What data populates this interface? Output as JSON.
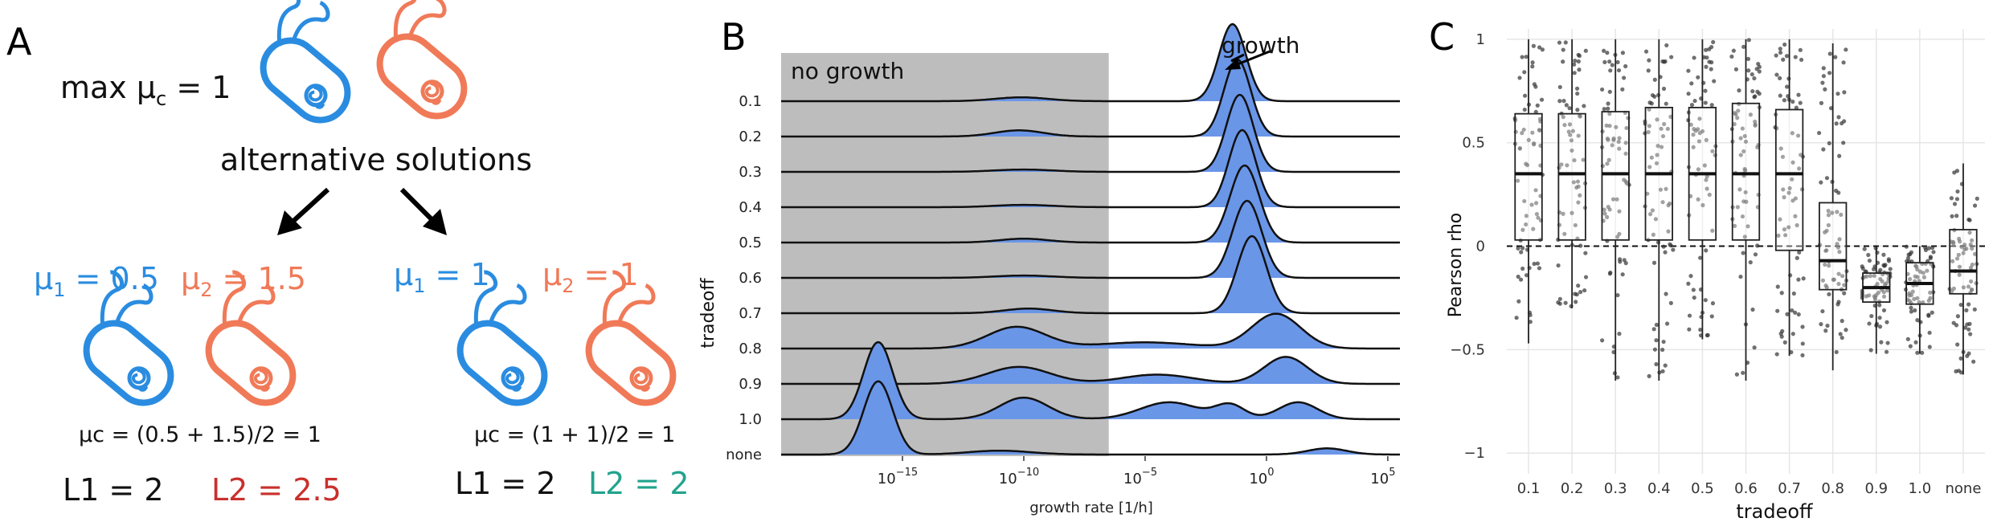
{
  "colors": {
    "blue": "#2a8ce0",
    "orange": "#f07a58",
    "l2_red": "#c9302c",
    "l2_teal": "#22a38c",
    "ridge_fill": "#6a96e8",
    "no_growth_bg": "#bdbdbd"
  },
  "panel_a": {
    "letter": "A",
    "max_mu_prefix": "max μ",
    "max_mu_sub": "c",
    "max_mu_suffix": " = 1",
    "alt_solutions": "alternative solutions",
    "left": {
      "mu1_prefix": "μ",
      "mu1_sub": "1",
      "mu1_value": " = 0.5",
      "mu2_prefix": "μ",
      "mu2_sub": "2",
      "mu2_value": " = 1.5",
      "formula": "μc = (0.5 + 1.5)/2 = 1",
      "l1": "L1 = 2",
      "l2": "L2 = 2.5"
    },
    "right": {
      "mu1_prefix": "μ",
      "mu1_sub": "1",
      "mu1_value": " = 1",
      "mu2_prefix": "μ",
      "mu2_sub": "2",
      "mu2_value": " = 1",
      "formula": "μc = (1 + 1)/2 = 1",
      "l1": "L1 = 2",
      "l2": "L2 = 2"
    },
    "icons": [
      "bacterium-blue-icon",
      "bacterium-orange-icon"
    ]
  },
  "panel_b": {
    "letter": "B",
    "no_growth_label": "no growth",
    "growth_label": "growth",
    "chart_data": {
      "type": "area",
      "x_scale": "log10",
      "xlim": [
        -20,
        5.5
      ],
      "xticks": [
        -15,
        -10,
        -5,
        0,
        5
      ],
      "xtick_labels": [
        "10",
        "10",
        "10",
        "10",
        "10"
      ],
      "xtick_exponents": [
        "−15",
        "−10",
        "−5",
        "0",
        "5"
      ],
      "xlabel": "growth rate [1/h]",
      "ylabel": "tradeoff",
      "no_growth_range": [
        -20,
        -6.5
      ],
      "categories": [
        "0.1",
        "0.2",
        "0.3",
        "0.4",
        "0.5",
        "0.6",
        "0.7",
        "0.8",
        "0.9",
        "1.0",
        "none"
      ],
      "series": [
        {
          "name": "0.1",
          "peaks": [
            [
              -1.4,
              0.55,
              1.0
            ],
            [
              -10.1,
              1.1,
              0.05
            ]
          ]
        },
        {
          "name": "0.2",
          "peaks": [
            [
              -1.2,
              0.55,
              1.0
            ],
            [
              -10.2,
              1.0,
              0.08
            ]
          ]
        },
        {
          "name": "0.3",
          "peaks": [
            [
              -1.1,
              0.55,
              1.0
            ],
            [
              -10.0,
              1.2,
              0.03
            ]
          ]
        },
        {
          "name": "0.4",
          "peaks": [
            [
              -1.0,
              0.55,
              1.0
            ],
            [
              -10.0,
              1.2,
              0.03
            ]
          ]
        },
        {
          "name": "0.5",
          "peaks": [
            [
              -0.9,
              0.6,
              1.0
            ],
            [
              -10.0,
              1.0,
              0.05
            ]
          ]
        },
        {
          "name": "0.6",
          "peaks": [
            [
              -0.8,
              0.6,
              1.0
            ],
            [
              -10.0,
              1.2,
              0.03
            ]
          ]
        },
        {
          "name": "0.7",
          "peaks": [
            [
              -0.6,
              0.6,
              1.0
            ],
            [
              -9.8,
              1.0,
              0.06
            ]
          ]
        },
        {
          "name": "0.8",
          "peaks": [
            [
              -10.3,
              1.2,
              0.28
            ],
            [
              0.4,
              1.0,
              0.45
            ],
            [
              -5.0,
              2.0,
              0.08
            ]
          ]
        },
        {
          "name": "0.9",
          "peaks": [
            [
              -10.2,
              1.3,
              0.22
            ],
            [
              -4.5,
              1.5,
              0.12
            ],
            [
              0.8,
              0.9,
              0.35
            ]
          ]
        },
        {
          "name": "1.0",
          "peaks": [
            [
              -16.0,
              0.6,
              1.0
            ],
            [
              -10.0,
              1.0,
              0.28
            ],
            [
              -4.0,
              1.2,
              0.22
            ],
            [
              -1.5,
              0.6,
              0.18
            ],
            [
              1.3,
              0.8,
              0.22
            ]
          ]
        },
        {
          "name": "none",
          "peaks": [
            [
              -16.0,
              0.6,
              0.95
            ],
            [
              -11.0,
              1.3,
              0.05
            ],
            [
              2.5,
              0.8,
              0.08
            ]
          ]
        }
      ]
    }
  },
  "panel_c": {
    "letter": "C",
    "chart_data": {
      "type": "box",
      "categories": [
        "0.1",
        "0.2",
        "0.3",
        "0.4",
        "0.5",
        "0.6",
        "0.7",
        "0.8",
        "0.9",
        "1.0",
        "none"
      ],
      "xlabel": "tradeoff",
      "ylabel": "Pearson rho",
      "ylim": [
        -1.1,
        1.05
      ],
      "yticks": [
        -1,
        -0.5,
        0,
        0.5,
        1
      ],
      "ytick_labels": [
        "−1",
        "−0.5",
        "0",
        "0.5",
        "1"
      ],
      "reference_line": 0,
      "boxes": [
        {
          "q1": 0.03,
          "median": 0.35,
          "q3": 0.64,
          "min": -0.47,
          "max": 1.0
        },
        {
          "q1": 0.03,
          "median": 0.35,
          "q3": 0.64,
          "min": -0.3,
          "max": 1.0
        },
        {
          "q1": 0.03,
          "median": 0.35,
          "q3": 0.65,
          "min": -0.65,
          "max": 1.0
        },
        {
          "q1": 0.03,
          "median": 0.35,
          "q3": 0.67,
          "min": -0.65,
          "max": 1.0
        },
        {
          "q1": 0.03,
          "median": 0.35,
          "q3": 0.67,
          "min": -0.45,
          "max": 1.0
        },
        {
          "q1": 0.03,
          "median": 0.35,
          "q3": 0.69,
          "min": -0.65,
          "max": 1.0
        },
        {
          "q1": -0.02,
          "median": 0.35,
          "q3": 0.66,
          "min": -0.53,
          "max": 1.0
        },
        {
          "q1": -0.21,
          "median": -0.07,
          "q3": 0.21,
          "min": -0.6,
          "max": 0.98
        },
        {
          "q1": -0.27,
          "median": -0.2,
          "q3": -0.13,
          "min": -0.52,
          "max": 0.0
        },
        {
          "q1": -0.28,
          "median": -0.18,
          "q3": -0.08,
          "min": -0.52,
          "max": 0.0
        },
        {
          "q1": -0.23,
          "median": -0.12,
          "q3": 0.08,
          "min": -0.62,
          "max": 0.4
        }
      ]
    }
  }
}
